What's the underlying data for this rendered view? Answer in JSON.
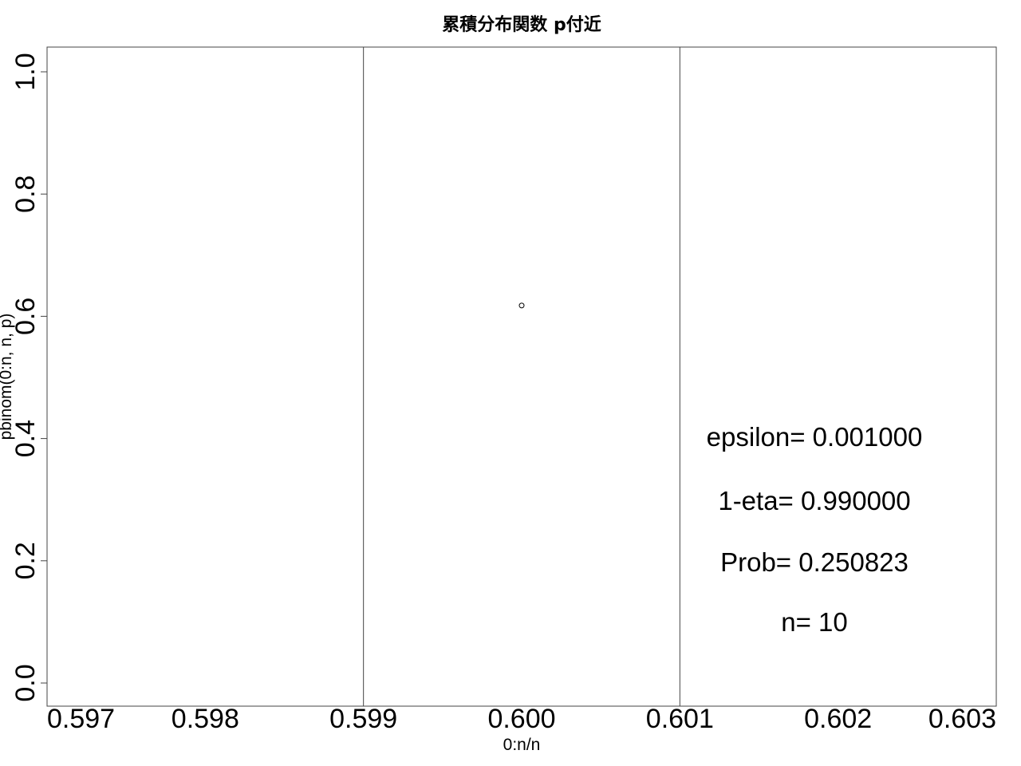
{
  "chart_data": {
    "type": "scatter",
    "title": "累積分布関数 p付近",
    "xlabel": "0:n/n",
    "ylabel": "pbinom(0:n, n, p)",
    "xlim": [
      0.597,
      0.603
    ],
    "ylim": [
      0.0,
      1.0
    ],
    "x_ticks": [
      "0.597",
      "0.598",
      "0.599",
      "0.600",
      "0.601",
      "0.602",
      "0.603"
    ],
    "y_ticks": [
      "0.0",
      "0.2",
      "0.4",
      "0.6",
      "0.8",
      "1.0"
    ],
    "points": [
      {
        "x": 0.6,
        "y": 0.6177
      }
    ],
    "vlines": [
      0.599,
      0.601
    ],
    "grid": false,
    "annotations": [
      "epsilon= 0.001000",
      "1-eta= 0.990000",
      "Prob= 0.250823",
      "n= 10"
    ]
  }
}
